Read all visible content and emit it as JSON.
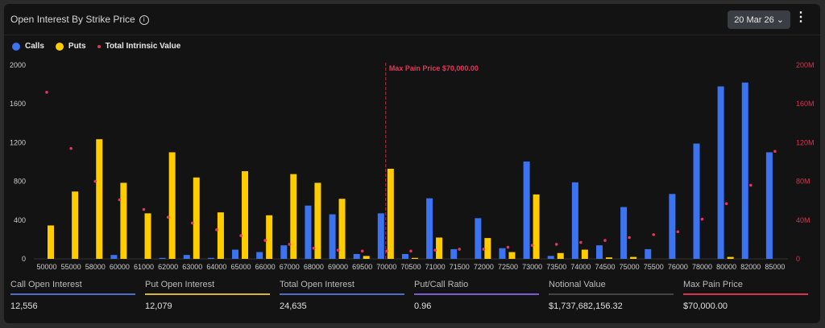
{
  "header": {
    "title": "Open Interest By Strike Price",
    "info_icon": "info-icon",
    "date_select": "20 Mar 26",
    "menu_icon": "kebab-icon"
  },
  "colors": {
    "calls": "#3b73f0",
    "puts": "#ffcc00",
    "intrinsic": "#e8345a"
  },
  "chart_data": {
    "type": "bar",
    "legend": [
      "Calls",
      "Puts",
      "Total Intrinsic Value"
    ],
    "legend_position": "top-left",
    "categories": [
      "50000",
      "55000",
      "58000",
      "60000",
      "61000",
      "62000",
      "63000",
      "64000",
      "65000",
      "66000",
      "67000",
      "68000",
      "69000",
      "69500",
      "70000",
      "70500",
      "71000",
      "71500",
      "72000",
      "72500",
      "73000",
      "73500",
      "74000",
      "74500",
      "75000",
      "75500",
      "76000",
      "78000",
      "80000",
      "82000",
      "85000"
    ],
    "series": [
      {
        "name": "Calls",
        "type": "bar",
        "values": [
          0,
          0,
          0,
          40,
          0,
          10,
          40,
          10,
          95,
          70,
          140,
          550,
          460,
          50,
          470,
          50,
          625,
          100,
          420,
          110,
          1005,
          30,
          790,
          140,
          535,
          100,
          670,
          1190,
          1780,
          1820,
          1100
        ]
      },
      {
        "name": "Puts",
        "type": "bar",
        "values": [
          345,
          695,
          1235,
          785,
          470,
          1100,
          840,
          480,
          905,
          450,
          875,
          785,
          620,
          30,
          930,
          10,
          220,
          0,
          215,
          70,
          665,
          60,
          95,
          15,
          20,
          0,
          0,
          0,
          20,
          0,
          0
        ]
      },
      {
        "name": "Total Intrinsic Value",
        "type": "scatter",
        "axis": "right",
        "values": [
          172,
          114,
          80,
          61,
          51,
          43,
          37,
          30,
          24,
          19,
          15,
          11,
          9,
          8,
          8,
          8,
          9,
          10,
          10,
          12,
          14,
          15,
          17,
          19,
          22,
          25,
          28,
          41,
          57,
          76,
          111
        ]
      }
    ],
    "ylim": [
      0,
      2000
    ],
    "yticks": [
      "0",
      "400",
      "800",
      "1200",
      "1600",
      "2000"
    ],
    "y2lim": [
      0,
      200
    ],
    "y2ticks": [
      "0",
      "40M",
      "80M",
      "120M",
      "160M",
      "200M"
    ],
    "annotation": {
      "category": "70000",
      "label": "Max Pain Price $70,000.00"
    },
    "grid": false
  },
  "stats": [
    {
      "label": "Call Open Interest",
      "value": "12,556",
      "color": "#4a6fd0"
    },
    {
      "label": "Put Open Interest",
      "value": "12,079",
      "color": "#d6b53a"
    },
    {
      "label": "Total Open Interest",
      "value": "24,635",
      "color": "#4a6fd0"
    },
    {
      "label": "Put/Call Ratio",
      "value": "0.96",
      "color": "#7b5ad6"
    },
    {
      "label": "Notional Value",
      "value": "$1,737,682,156.32",
      "color": "#444"
    },
    {
      "label": "Max Pain Price",
      "value": "$70,000.00",
      "color": "#d8344f"
    }
  ]
}
